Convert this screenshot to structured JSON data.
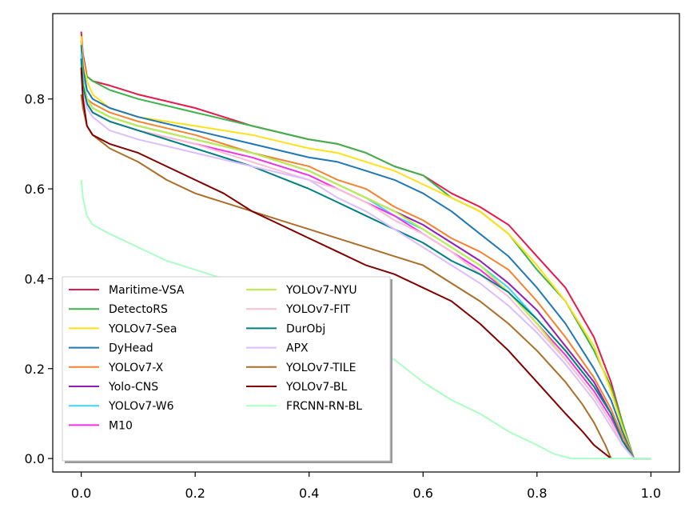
{
  "chart_data": {
    "type": "line",
    "title": "",
    "xlabel": "",
    "ylabel": "",
    "xlim": [
      -0.05,
      1.05
    ],
    "ylim": [
      -0.03,
      0.99
    ],
    "xticks": [
      0.0,
      0.2,
      0.4,
      0.6,
      0.8,
      1.0
    ],
    "yticks": [
      0.0,
      0.2,
      0.4,
      0.6,
      0.8
    ],
    "xtick_labels": [
      "0.0",
      "0.2",
      "0.4",
      "0.6",
      "0.8",
      "1.0"
    ],
    "ytick_labels": [
      "0.0",
      "0.2",
      "0.4",
      "0.6",
      "0.8"
    ],
    "grid": false,
    "legend_position": "lower-left",
    "series": [
      {
        "name": "Maritime-VSA",
        "color": "#e6194b",
        "x": [
          0,
          0.003,
          0.01,
          0.02,
          0.05,
          0.1,
          0.2,
          0.3,
          0.4,
          0.45,
          0.5,
          0.55,
          0.6,
          0.65,
          0.7,
          0.75,
          0.8,
          0.85,
          0.9,
          0.93,
          0.95,
          0.97,
          1.0
        ],
        "y": [
          0.95,
          0.9,
          0.85,
          0.84,
          0.83,
          0.81,
          0.78,
          0.74,
          0.71,
          0.7,
          0.68,
          0.65,
          0.63,
          0.59,
          0.56,
          0.52,
          0.45,
          0.38,
          0.27,
          0.17,
          0.08,
          0.0,
          0.0
        ]
      },
      {
        "name": "DetectoRS",
        "color": "#3cb44b",
        "x": [
          0,
          0.003,
          0.01,
          0.02,
          0.05,
          0.1,
          0.2,
          0.3,
          0.4,
          0.45,
          0.5,
          0.55,
          0.6,
          0.65,
          0.7,
          0.75,
          0.8,
          0.85,
          0.9,
          0.93,
          0.95,
          0.97,
          1.0
        ],
        "y": [
          0.93,
          0.88,
          0.85,
          0.84,
          0.82,
          0.8,
          0.77,
          0.74,
          0.71,
          0.7,
          0.68,
          0.65,
          0.63,
          0.58,
          0.55,
          0.5,
          0.42,
          0.35,
          0.24,
          0.16,
          0.08,
          0.0,
          0.0
        ]
      },
      {
        "name": "YOLOv7-Sea",
        "color": "#ffe119",
        "x": [
          0,
          0.003,
          0.01,
          0.02,
          0.05,
          0.1,
          0.2,
          0.3,
          0.4,
          0.45,
          0.5,
          0.55,
          0.6,
          0.65,
          0.7,
          0.75,
          0.8,
          0.85,
          0.9,
          0.93,
          0.95,
          0.97,
          1.0
        ],
        "y": [
          0.94,
          0.89,
          0.84,
          0.81,
          0.78,
          0.76,
          0.74,
          0.72,
          0.69,
          0.68,
          0.66,
          0.64,
          0.61,
          0.58,
          0.55,
          0.5,
          0.43,
          0.35,
          0.25,
          0.15,
          0.07,
          0.0,
          0.0
        ]
      },
      {
        "name": "DyHead",
        "color": "#1f78b4",
        "x": [
          0,
          0.003,
          0.01,
          0.02,
          0.05,
          0.1,
          0.2,
          0.3,
          0.4,
          0.45,
          0.5,
          0.55,
          0.6,
          0.65,
          0.7,
          0.75,
          0.8,
          0.85,
          0.9,
          0.93,
          0.95,
          0.97,
          1.0
        ],
        "y": [
          0.92,
          0.87,
          0.82,
          0.8,
          0.78,
          0.76,
          0.73,
          0.7,
          0.67,
          0.66,
          0.64,
          0.62,
          0.59,
          0.55,
          0.5,
          0.45,
          0.38,
          0.3,
          0.2,
          0.13,
          0.06,
          0.0,
          0.0
        ]
      },
      {
        "name": "YOLOv7-X",
        "color": "#f58231",
        "x": [
          0,
          0.003,
          0.01,
          0.02,
          0.05,
          0.1,
          0.2,
          0.3,
          0.4,
          0.45,
          0.5,
          0.55,
          0.6,
          0.65,
          0.7,
          0.75,
          0.8,
          0.85,
          0.9,
          0.93,
          0.95,
          0.97,
          1.0
        ],
        "y": [
          0.9,
          0.85,
          0.8,
          0.79,
          0.77,
          0.75,
          0.72,
          0.68,
          0.65,
          0.62,
          0.6,
          0.56,
          0.53,
          0.49,
          0.46,
          0.42,
          0.35,
          0.27,
          0.18,
          0.11,
          0.05,
          0.0,
          0.0
        ]
      },
      {
        "name": "Yolo-CNS",
        "color": "#911eb4",
        "x": [
          0,
          0.003,
          0.01,
          0.02,
          0.05,
          0.1,
          0.2,
          0.3,
          0.4,
          0.45,
          0.5,
          0.55,
          0.6,
          0.65,
          0.7,
          0.75,
          0.8,
          0.85,
          0.9,
          0.93,
          0.95,
          0.97,
          1.0
        ],
        "y": [
          0.89,
          0.84,
          0.8,
          0.78,
          0.76,
          0.74,
          0.71,
          0.68,
          0.64,
          0.61,
          0.58,
          0.55,
          0.52,
          0.48,
          0.44,
          0.39,
          0.33,
          0.25,
          0.17,
          0.1,
          0.04,
          0.0,
          0.0
        ]
      },
      {
        "name": "YOLOv7-W6",
        "color": "#42d4f4",
        "x": [
          0,
          0.003,
          0.01,
          0.02,
          0.05,
          0.1,
          0.2,
          0.3,
          0.4,
          0.45,
          0.5,
          0.55,
          0.6,
          0.65,
          0.7,
          0.75,
          0.8,
          0.85,
          0.9,
          0.93,
          0.95,
          0.97,
          1.0
        ],
        "y": [
          0.9,
          0.85,
          0.8,
          0.78,
          0.76,
          0.74,
          0.71,
          0.68,
          0.64,
          0.61,
          0.58,
          0.54,
          0.51,
          0.47,
          0.43,
          0.38,
          0.31,
          0.24,
          0.16,
          0.1,
          0.04,
          0.0,
          0.0
        ]
      },
      {
        "name": "M10",
        "color": "#f032e6",
        "x": [
          0,
          0.003,
          0.01,
          0.02,
          0.05,
          0.1,
          0.2,
          0.3,
          0.4,
          0.45,
          0.5,
          0.55,
          0.6,
          0.65,
          0.7,
          0.75,
          0.8,
          0.85,
          0.9,
          0.93,
          0.95,
          0.97,
          1.0
        ],
        "y": [
          0.88,
          0.83,
          0.79,
          0.77,
          0.75,
          0.73,
          0.7,
          0.67,
          0.63,
          0.6,
          0.57,
          0.54,
          0.5,
          0.46,
          0.42,
          0.37,
          0.3,
          0.23,
          0.15,
          0.09,
          0.04,
          0.0,
          0.0
        ]
      },
      {
        "name": "YOLOv7-NYU",
        "color": "#bfef45",
        "x": [
          0,
          0.003,
          0.01,
          0.02,
          0.05,
          0.1,
          0.2,
          0.3,
          0.4,
          0.45,
          0.5,
          0.55,
          0.6,
          0.65,
          0.7,
          0.75,
          0.8,
          0.85,
          0.9,
          0.93,
          0.95,
          0.97,
          1.0
        ],
        "y": [
          0.89,
          0.84,
          0.8,
          0.78,
          0.76,
          0.74,
          0.71,
          0.68,
          0.64,
          0.61,
          0.58,
          0.55,
          0.51,
          0.47,
          0.43,
          0.37,
          0.3,
          0.22,
          0.14,
          0.08,
          0.03,
          0.0,
          0.0
        ]
      },
      {
        "name": "YOLOv7-FIT",
        "color": "#fabed4",
        "x": [
          0,
          0.003,
          0.01,
          0.02,
          0.05,
          0.1,
          0.2,
          0.3,
          0.4,
          0.45,
          0.5,
          0.55,
          0.6,
          0.65,
          0.7,
          0.75,
          0.8,
          0.85,
          0.9,
          0.93,
          0.95,
          0.97,
          1.0
        ],
        "y": [
          0.88,
          0.83,
          0.79,
          0.77,
          0.75,
          0.73,
          0.7,
          0.66,
          0.62,
          0.6,
          0.57,
          0.53,
          0.5,
          0.46,
          0.41,
          0.36,
          0.29,
          0.22,
          0.14,
          0.08,
          0.03,
          0.0,
          0.0
        ]
      },
      {
        "name": "DurObj",
        "color": "#008080",
        "x": [
          0,
          0.003,
          0.01,
          0.02,
          0.05,
          0.1,
          0.2,
          0.3,
          0.4,
          0.45,
          0.5,
          0.55,
          0.6,
          0.65,
          0.7,
          0.75,
          0.8,
          0.85,
          0.9,
          0.93,
          0.95,
          0.97,
          1.0
        ],
        "y": [
          0.89,
          0.83,
          0.79,
          0.77,
          0.75,
          0.73,
          0.69,
          0.65,
          0.6,
          0.57,
          0.54,
          0.51,
          0.48,
          0.44,
          0.41,
          0.37,
          0.31,
          0.24,
          0.16,
          0.1,
          0.04,
          0.0,
          0.0
        ]
      },
      {
        "name": "APX",
        "color": "#dcbeff",
        "x": [
          0,
          0.003,
          0.01,
          0.02,
          0.05,
          0.1,
          0.2,
          0.3,
          0.4,
          0.45,
          0.5,
          0.55,
          0.6,
          0.65,
          0.7,
          0.75,
          0.8,
          0.85,
          0.9,
          0.93,
          0.95,
          0.97,
          1.0
        ],
        "y": [
          0.86,
          0.81,
          0.78,
          0.76,
          0.73,
          0.71,
          0.68,
          0.65,
          0.62,
          0.58,
          0.55,
          0.51,
          0.47,
          0.43,
          0.39,
          0.34,
          0.28,
          0.21,
          0.13,
          0.07,
          0.03,
          0.0,
          0.0
        ]
      },
      {
        "name": "YOLOv7-TILE",
        "color": "#aa6e28",
        "x": [
          0,
          0.003,
          0.01,
          0.02,
          0.05,
          0.1,
          0.15,
          0.2,
          0.25,
          0.3,
          0.35,
          0.4,
          0.45,
          0.5,
          0.55,
          0.6,
          0.65,
          0.7,
          0.75,
          0.8,
          0.85,
          0.88,
          0.9,
          0.92,
          0.93
        ],
        "y": [
          0.81,
          0.78,
          0.74,
          0.72,
          0.69,
          0.66,
          0.62,
          0.59,
          0.57,
          0.55,
          0.53,
          0.51,
          0.49,
          0.47,
          0.45,
          0.43,
          0.39,
          0.35,
          0.3,
          0.24,
          0.17,
          0.12,
          0.08,
          0.03,
          0.0
        ]
      },
      {
        "name": "YOLOv7-BL",
        "color": "#800000",
        "x": [
          0,
          0.003,
          0.01,
          0.02,
          0.05,
          0.1,
          0.15,
          0.2,
          0.25,
          0.3,
          0.35,
          0.4,
          0.45,
          0.5,
          0.55,
          0.6,
          0.65,
          0.7,
          0.75,
          0.8,
          0.85,
          0.88,
          0.9,
          0.92,
          0.93
        ],
        "y": [
          0.87,
          0.8,
          0.74,
          0.72,
          0.7,
          0.68,
          0.65,
          0.62,
          0.59,
          0.55,
          0.52,
          0.49,
          0.46,
          0.43,
          0.41,
          0.38,
          0.35,
          0.3,
          0.24,
          0.17,
          0.1,
          0.06,
          0.03,
          0.01,
          0.0
        ]
      },
      {
        "name": "FRCNN-RN-BL",
        "color": "#aaffc3",
        "x": [
          0,
          0.003,
          0.01,
          0.02,
          0.05,
          0.1,
          0.15,
          0.2,
          0.25,
          0.3,
          0.35,
          0.4,
          0.45,
          0.5,
          0.55,
          0.6,
          0.65,
          0.7,
          0.75,
          0.8,
          0.83,
          0.86,
          0.9,
          0.95,
          1.0
        ],
        "y": [
          0.62,
          0.58,
          0.54,
          0.52,
          0.5,
          0.47,
          0.44,
          0.42,
          0.4,
          0.38,
          0.34,
          0.31,
          0.28,
          0.25,
          0.22,
          0.17,
          0.13,
          0.1,
          0.06,
          0.03,
          0.01,
          0.0,
          0.0,
          0.0,
          0.0
        ]
      }
    ]
  }
}
